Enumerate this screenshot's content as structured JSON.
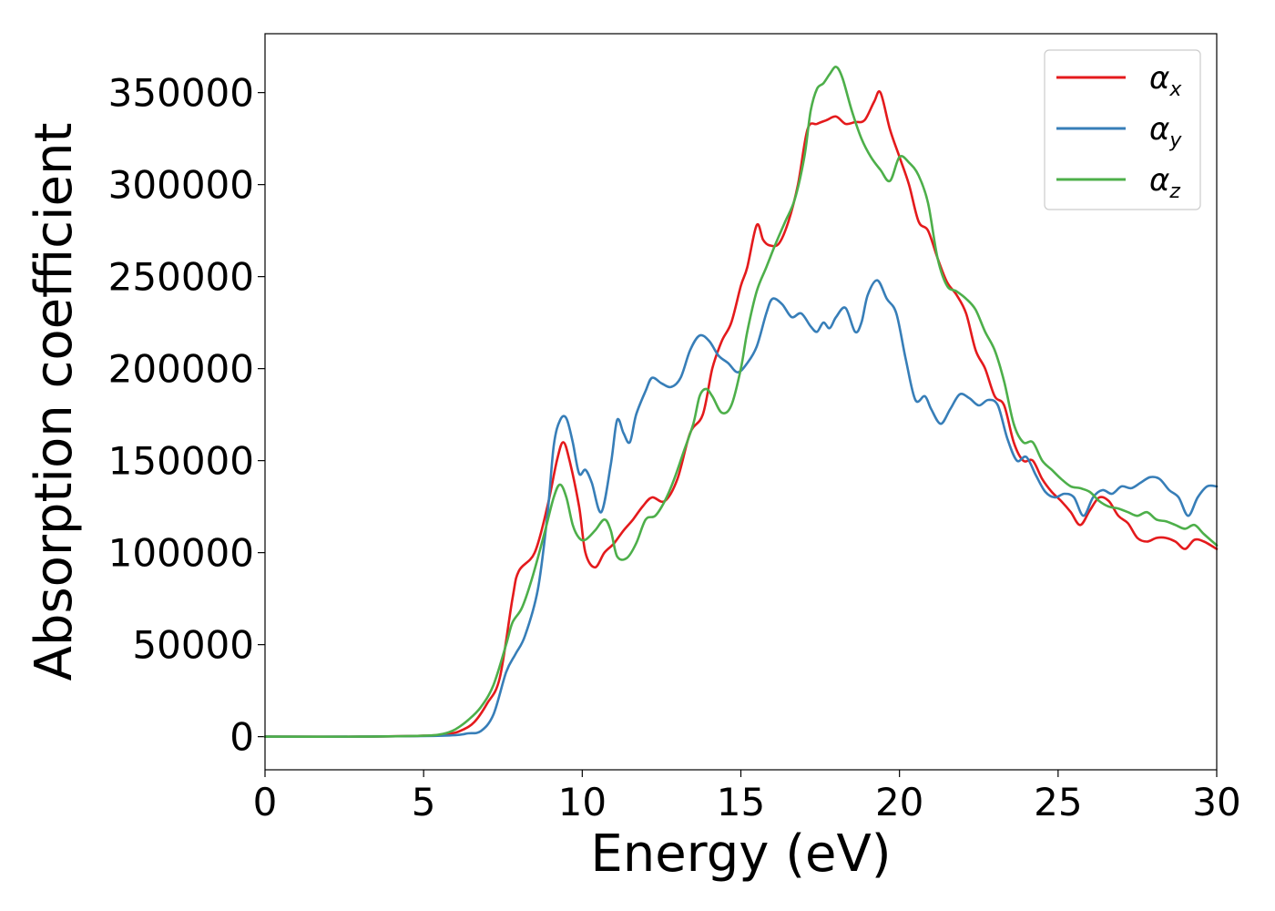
{
  "chart_data": {
    "type": "line",
    "title": "",
    "xlabel": "Energy (eV)",
    "ylabel": "Absorption coefficient",
    "xlim": [
      0,
      30
    ],
    "ylim": [
      -18000,
      382000
    ],
    "xticks": [
      0,
      5,
      10,
      15,
      20,
      25,
      30
    ],
    "yticks": [
      0,
      50000,
      100000,
      150000,
      200000,
      250000,
      300000,
      350000
    ],
    "grid": false,
    "legend": "top-right",
    "series": [
      {
        "name": "x",
        "legend_base": "α",
        "legend_sub": "x",
        "color": "#e41a1c",
        "x": [
          0,
          3,
          5,
          5.8,
          6.2,
          6.6,
          7.0,
          7.4,
          7.8,
          8.0,
          8.5,
          8.9,
          9.2,
          9.4,
          9.6,
          9.9,
          10.1,
          10.4,
          10.7,
          11.0,
          11.3,
          11.6,
          11.9,
          12.2,
          12.6,
          13.0,
          13.4,
          13.8,
          14.1,
          14.4,
          14.7,
          15.0,
          15.2,
          15.5,
          15.7,
          15.9,
          16.2,
          16.5,
          16.8,
          17.1,
          17.4,
          17.7,
          18.0,
          18.3,
          18.6,
          18.9,
          19.2,
          19.4,
          19.7,
          20.0,
          20.3,
          20.6,
          20.9,
          21.2,
          21.5,
          21.8,
          22.1,
          22.4,
          22.7,
          23.0,
          23.3,
          23.6,
          23.9,
          24.2,
          24.5,
          24.8,
          25.1,
          25.4,
          25.7,
          26.0,
          26.3,
          26.6,
          26.9,
          27.2,
          27.5,
          27.8,
          28.1,
          28.4,
          28.7,
          29.0,
          29.3,
          29.6,
          30.0
        ],
        "y": [
          0,
          0,
          500,
          1500,
          3500,
          8000,
          18000,
          32000,
          75000,
          90000,
          100000,
          125000,
          150000,
          160000,
          150000,
          125000,
          100000,
          92000,
          100000,
          105000,
          112000,
          118000,
          125000,
          130000,
          128000,
          140000,
          165000,
          175000,
          200000,
          215000,
          225000,
          245000,
          255000,
          278000,
          270000,
          267000,
          268000,
          280000,
          300000,
          330000,
          333000,
          335000,
          337000,
          333000,
          334000,
          335000,
          345000,
          350000,
          330000,
          315000,
          300000,
          280000,
          275000,
          260000,
          247000,
          240000,
          230000,
          210000,
          200000,
          185000,
          180000,
          160000,
          150000,
          150000,
          140000,
          133000,
          128000,
          122000,
          115000,
          123000,
          130000,
          128000,
          120000,
          116000,
          108000,
          106000,
          108000,
          108000,
          106000,
          102000,
          107000,
          106000,
          102000
        ]
      },
      {
        "name": "y",
        "legend_base": "α",
        "legend_sub": "y",
        "color": "#377eb8",
        "x": [
          0,
          3,
          5,
          6.0,
          6.4,
          6.8,
          7.2,
          7.6,
          7.9,
          8.2,
          8.6,
          8.9,
          9.1,
          9.3,
          9.5,
          9.7,
          9.9,
          10.1,
          10.3,
          10.6,
          10.9,
          11.1,
          11.3,
          11.5,
          11.7,
          12.0,
          12.2,
          12.5,
          12.8,
          13.1,
          13.4,
          13.7,
          14.0,
          14.3,
          14.6,
          14.9,
          15.2,
          15.5,
          15.8,
          16.0,
          16.3,
          16.6,
          16.9,
          17.2,
          17.4,
          17.6,
          17.8,
          18.0,
          18.3,
          18.6,
          18.8,
          19.0,
          19.3,
          19.6,
          19.9,
          20.2,
          20.5,
          20.8,
          21.0,
          21.3,
          21.6,
          21.9,
          22.2,
          22.5,
          22.8,
          23.1,
          23.4,
          23.7,
          24.0,
          24.3,
          24.6,
          24.9,
          25.2,
          25.5,
          25.8,
          26.1,
          26.4,
          26.7,
          27.0,
          27.3,
          27.6,
          27.9,
          28.2,
          28.5,
          28.8,
          29.1,
          29.4,
          29.7,
          30.0
        ],
        "y": [
          0,
          0,
          300,
          800,
          1800,
          3000,
          12000,
          35000,
          45000,
          55000,
          80000,
          120000,
          158000,
          172000,
          173000,
          160000,
          143000,
          145000,
          138000,
          122000,
          148000,
          172000,
          165000,
          160000,
          175000,
          188000,
          195000,
          192000,
          190000,
          195000,
          210000,
          218000,
          215000,
          207000,
          203000,
          198000,
          203000,
          212000,
          230000,
          238000,
          235000,
          228000,
          230000,
          223000,
          220000,
          225000,
          222000,
          228000,
          233000,
          220000,
          225000,
          240000,
          248000,
          238000,
          230000,
          205000,
          183000,
          185000,
          178000,
          170000,
          178000,
          186000,
          184000,
          180000,
          183000,
          180000,
          162000,
          150000,
          152000,
          142000,
          133000,
          130000,
          132000,
          130000,
          120000,
          130000,
          134000,
          132000,
          136000,
          135000,
          138000,
          141000,
          140000,
          134000,
          130000,
          120000,
          130000,
          136000,
          136000
        ]
      },
      {
        "name": "z",
        "legend_base": "α",
        "legend_sub": "z",
        "color": "#4daf4a",
        "x": [
          0,
          3,
          5,
          5.6,
          6.0,
          6.4,
          6.8,
          7.2,
          7.6,
          7.8,
          8.1,
          8.4,
          8.8,
          9.1,
          9.3,
          9.5,
          9.7,
          9.9,
          10.1,
          10.4,
          10.7,
          10.9,
          11.1,
          11.4,
          11.7,
          12.0,
          12.3,
          12.6,
          12.9,
          13.2,
          13.5,
          13.7,
          13.9,
          14.1,
          14.4,
          14.7,
          15.0,
          15.2,
          15.5,
          15.8,
          16.1,
          16.4,
          16.7,
          17.0,
          17.2,
          17.4,
          17.6,
          17.8,
          18.0,
          18.2,
          18.5,
          18.8,
          19.1,
          19.4,
          19.7,
          20.0,
          20.3,
          20.6,
          20.9,
          21.2,
          21.5,
          21.8,
          22.1,
          22.4,
          22.7,
          23.0,
          23.3,
          23.6,
          23.9,
          24.2,
          24.5,
          24.8,
          25.1,
          25.4,
          25.7,
          26.0,
          26.3,
          26.6,
          26.9,
          27.2,
          27.5,
          27.8,
          28.1,
          28.4,
          28.7,
          29.0,
          29.3,
          29.6,
          30.0
        ],
        "y": [
          0,
          0,
          500,
          1500,
          4000,
          9000,
          16000,
          28000,
          50000,
          62000,
          70000,
          85000,
          110000,
          130000,
          137000,
          130000,
          115000,
          108000,
          107000,
          112000,
          118000,
          112000,
          98000,
          97000,
          105000,
          118000,
          120000,
          128000,
          140000,
          155000,
          170000,
          185000,
          189000,
          185000,
          176000,
          180000,
          200000,
          220000,
          242000,
          255000,
          268000,
          280000,
          292000,
          315000,
          340000,
          352000,
          355000,
          360000,
          364000,
          358000,
          340000,
          325000,
          315000,
          308000,
          302000,
          315000,
          312000,
          305000,
          290000,
          260000,
          245000,
          242000,
          238000,
          232000,
          220000,
          210000,
          193000,
          170000,
          160000,
          160000,
          150000,
          145000,
          140000,
          136000,
          135000,
          133000,
          128000,
          125000,
          124000,
          122000,
          120000,
          122000,
          118000,
          117000,
          115000,
          113000,
          115000,
          110000,
          104000
        ]
      }
    ]
  }
}
